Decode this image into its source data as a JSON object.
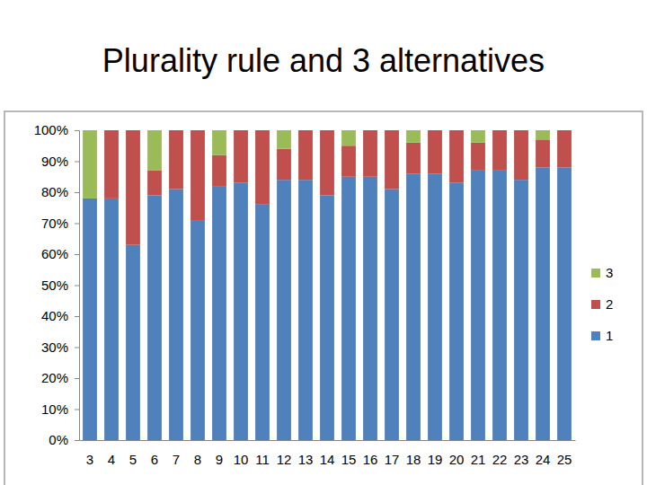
{
  "chart_data": {
    "type": "bar",
    "stacked": true,
    "title": "Plurality rule and 3 alternatives",
    "categories": [
      "3",
      "4",
      "5",
      "6",
      "7",
      "8",
      "9",
      "10",
      "11",
      "12",
      "13",
      "14",
      "15",
      "16",
      "17",
      "18",
      "19",
      "20",
      "21",
      "22",
      "23",
      "24",
      "25"
    ],
    "series": [
      {
        "name": "1",
        "color": "#4f81bd",
        "values": [
          78,
          78,
          63,
          79,
          81,
          71,
          82,
          83,
          76,
          84,
          84,
          79,
          85,
          85,
          81,
          86,
          86,
          83,
          87,
          87,
          84,
          88,
          88
        ]
      },
      {
        "name": "2",
        "color": "#c0504d",
        "values": [
          0,
          22,
          37,
          8,
          19,
          29,
          10,
          17,
          24,
          10,
          16,
          21,
          10,
          15,
          19,
          10,
          14,
          17,
          9,
          13,
          16,
          9,
          12
        ]
      },
      {
        "name": "3",
        "color": "#9bbb59",
        "values": [
          22,
          0,
          0,
          13,
          0,
          0,
          8,
          0,
          0,
          6,
          0,
          0,
          5,
          0,
          0,
          4,
          0,
          0,
          4,
          0,
          0,
          3,
          0
        ]
      }
    ],
    "ylim": [
      0,
      100
    ],
    "yticks": [
      {
        "value": 0,
        "label": "0%"
      },
      {
        "value": 10,
        "label": "10%"
      },
      {
        "value": 20,
        "label": "20%"
      },
      {
        "value": 30,
        "label": "30%"
      },
      {
        "value": 40,
        "label": "40%"
      },
      {
        "value": 50,
        "label": "50%"
      },
      {
        "value": 60,
        "label": "60%"
      },
      {
        "value": 70,
        "label": "70%"
      },
      {
        "value": 80,
        "label": "80%"
      },
      {
        "value": 90,
        "label": "90%"
      },
      {
        "value": 100,
        "label": "100%"
      }
    ],
    "grid": false,
    "legend": "right"
  }
}
